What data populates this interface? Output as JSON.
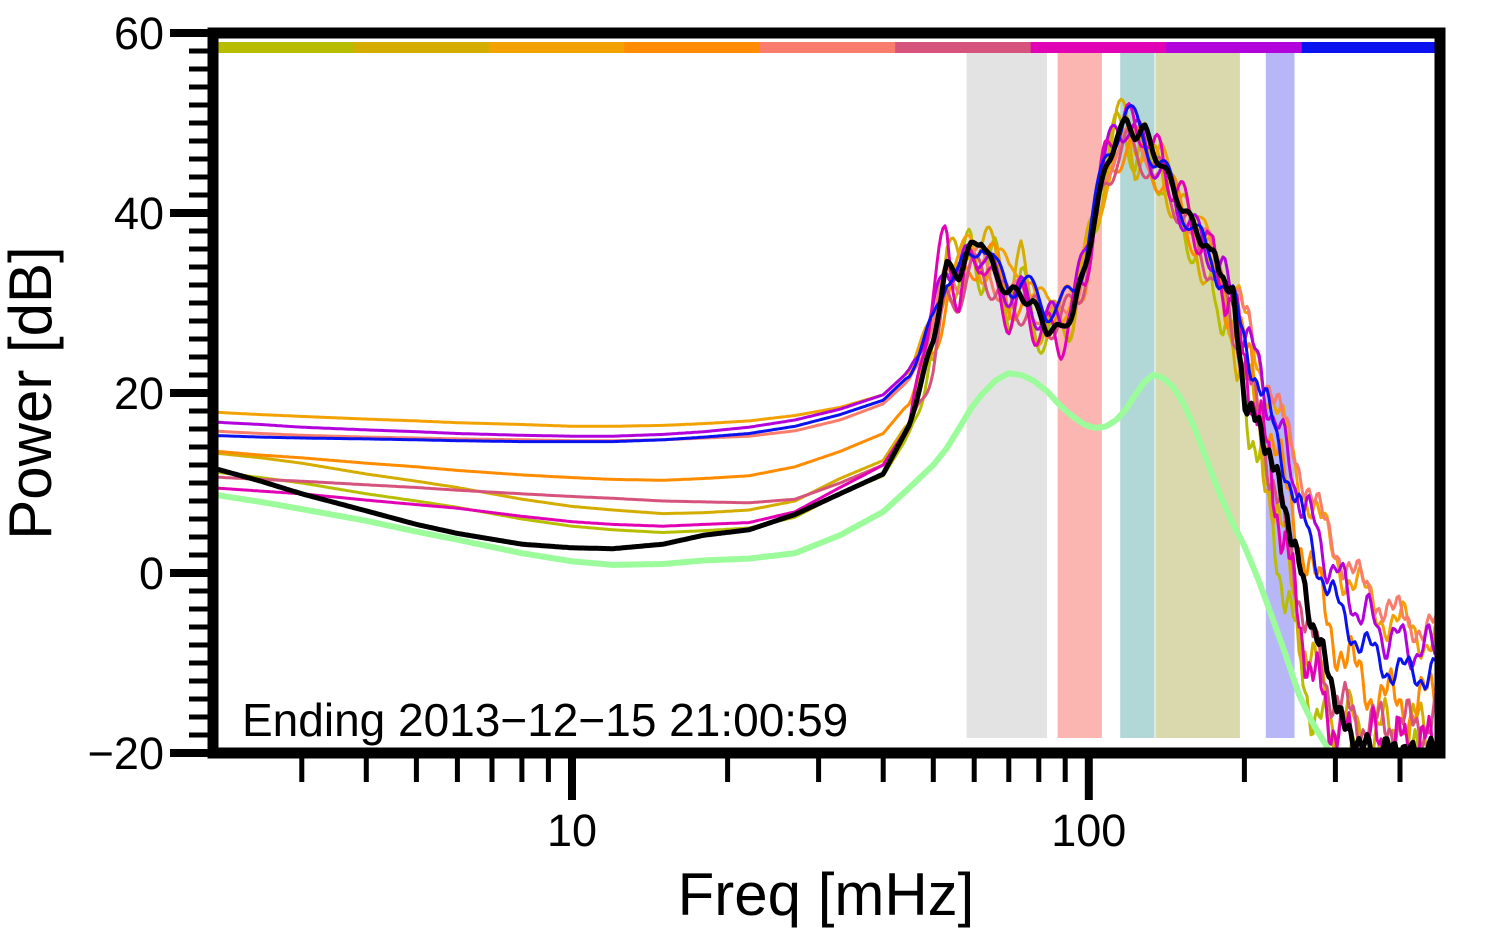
{
  "chart_data": {
    "type": "line",
    "title": "",
    "xlabel": "Freq [mHz]",
    "ylabel": "Power [dB]",
    "annotation": "Ending 2013−12−15 21:00:59",
    "x_scale": "log",
    "xlim": [
      2.02,
      478
    ],
    "ylim": [
      -20,
      60
    ],
    "grid": false,
    "legend_position": "none",
    "background_color": "#ffffff",
    "frame_color": "#000000",
    "x_major_ticks": [
      {
        "f": 10,
        "label": "10"
      },
      {
        "f": 100,
        "label": "100"
      }
    ],
    "x_minor_ticks": [
      3,
      4,
      5,
      6,
      7,
      8,
      9,
      20,
      30,
      40,
      50,
      60,
      70,
      80,
      90,
      200,
      300,
      400
    ],
    "y_major_ticks": [
      {
        "v": -20,
        "label": "−20"
      },
      {
        "v": 0,
        "label": "0"
      },
      {
        "v": 20,
        "label": "20"
      },
      {
        "v": 40,
        "label": "40"
      },
      {
        "v": 60,
        "label": "60"
      }
    ],
    "y_minor_step": 2,
    "shaded_bands": [
      {
        "name": "gray-band",
        "color": "#e3e3e3",
        "f_range_mhz": [
          58,
          83
        ]
      },
      {
        "name": "pink-band",
        "color": "#fcb6b2",
        "f_range_mhz": [
          87,
          106
        ]
      },
      {
        "name": "teal-band",
        "color": "#b2d7d7",
        "f_range_mhz": [
          115,
          134
        ]
      },
      {
        "name": "khaki-band",
        "color": "#d9d9ad",
        "f_range_mhz": [
          134.5,
          196
        ]
      },
      {
        "name": "lavender-band",
        "color": "#b7b7f8",
        "f_range_mhz": [
          220,
          250
        ]
      }
    ],
    "epoch_colorbar_segments": [
      "#b7bd00",
      "#d4ad00",
      "#f2a202",
      "#ff8c00",
      "#fa7c6c",
      "#d6537d",
      "#e202b6",
      "#b303dc",
      "#0b12f0"
    ],
    "freqs_mhz": [
      1.98,
      2.5,
      3,
      4,
      5,
      6,
      8,
      10,
      12,
      15,
      18,
      22,
      27,
      33,
      40,
      45,
      50,
      53,
      56,
      59,
      62,
      66,
      70,
      74,
      78,
      83,
      88,
      93,
      98,
      103,
      108,
      113,
      118,
      123,
      128,
      133,
      138,
      145,
      152,
      160,
      170,
      180,
      190,
      200,
      212,
      225,
      240,
      255,
      270,
      290,
      310,
      335,
      360,
      390,
      420,
      450,
      478
    ],
    "series": [
      {
        "name": "epoch-1-olive",
        "color": "#b7bd00",
        "width": 3,
        "wiggle": {
          "amp": 2.8,
          "period": 30,
          "phase": 0.5
        },
        "wiggle2": {
          "amp": 1.2,
          "period": 9,
          "phase": 0.0
        },
        "db": [
          11.3,
          10.6,
          10.0,
          8.8,
          8.0,
          7.3,
          6.0,
          5.2,
          4.8,
          4.5,
          4.7,
          5.0,
          6.2,
          8.8,
          10.8,
          15.5,
          24.0,
          34.0,
          31.0,
          37.0,
          33.5,
          34.5,
          29.5,
          32.0,
          28.0,
          26.5,
          27.0,
          29.0,
          33.0,
          39.5,
          45.5,
          48.5,
          50.0,
          46.0,
          47.5,
          44.0,
          45.0,
          41.5,
          39.0,
          36.5,
          33.5,
          30.0,
          25.5,
          20.0,
          13.5,
          6.5,
          -2.0,
          -9.5,
          -14.5,
          -18.5,
          -21.5,
          -22.0,
          -21.0,
          -22.0,
          -21.5,
          -21.0,
          -21.5
        ]
      },
      {
        "name": "epoch-2-gold",
        "color": "#d4ad00",
        "width": 3,
        "wiggle": {
          "amp": 3.0,
          "period": 33,
          "phase": 2.0
        },
        "wiggle2": {
          "amp": 1.2,
          "period": 9,
          "phase": 2.0
        },
        "db": [
          13.4,
          12.8,
          12.2,
          11.0,
          10.2,
          9.5,
          8.2,
          7.4,
          7.0,
          6.6,
          6.7,
          7.0,
          8.0,
          10.5,
          12.5,
          17.0,
          25.0,
          36.0,
          33.0,
          38.5,
          35.0,
          36.0,
          30.0,
          34.0,
          29.0,
          27.0,
          27.5,
          29.5,
          33.5,
          40.0,
          46.0,
          49.0,
          50.5,
          46.5,
          48.0,
          44.5,
          45.5,
          42.0,
          39.5,
          37.0,
          34.0,
          31.0,
          27.0,
          22.0,
          16.0,
          9.5,
          2.0,
          -5.0,
          -10.5,
          -14.5,
          -16.5,
          -18.0,
          -18.5,
          -17.5,
          -18.0,
          -17.5,
          -17.0
        ]
      },
      {
        "name": "epoch-4-orange",
        "color": "#ff8c00",
        "width": 3,
        "wiggle": {
          "amp": 2.4,
          "period": 36,
          "phase": 4.0
        },
        "wiggle2": {
          "amp": 1.3,
          "period": 10,
          "phase": 1.0
        },
        "db": [
          13.6,
          13.1,
          12.8,
          12.2,
          11.8,
          11.4,
          10.9,
          10.6,
          10.4,
          10.3,
          10.5,
          10.8,
          11.8,
          13.5,
          15.5,
          19.0,
          25.0,
          31.0,
          32.0,
          34.5,
          35.5,
          34.0,
          31.0,
          29.5,
          30.0,
          28.5,
          29.0,
          30.0,
          33.0,
          38.5,
          43.5,
          46.5,
          48.0,
          47.5,
          46.0,
          45.5,
          44.0,
          42.0,
          40.0,
          37.5,
          35.0,
          32.0,
          28.5,
          24.5,
          20.0,
          15.0,
          9.5,
          4.5,
          0.0,
          -5.0,
          -9.0,
          -12.0,
          -13.5,
          -14.5,
          -14.8,
          -14.2,
          -13.8
        ]
      },
      {
        "name": "epoch-3-amber",
        "color": "#f2a202",
        "width": 3,
        "wiggle": {
          "amp": 2.0,
          "period": 40,
          "phase": 1.0
        },
        "wiggle2": {
          "amp": 0.9,
          "period": 11,
          "phase": 4.0
        },
        "db": [
          17.9,
          17.6,
          17.4,
          17.1,
          16.9,
          16.7,
          16.5,
          16.3,
          16.3,
          16.4,
          16.6,
          16.9,
          17.5,
          18.4,
          19.8,
          22.5,
          28.0,
          33.0,
          34.0,
          36.5,
          34.0,
          35.0,
          33.0,
          34.5,
          31.0,
          29.0,
          29.5,
          31.0,
          34.0,
          39.0,
          44.0,
          47.0,
          49.0,
          47.0,
          48.0,
          45.5,
          46.0,
          43.0,
          41.0,
          39.0,
          36.5,
          34.0,
          31.5,
          28.0,
          24.0,
          19.5,
          15.0,
          11.0,
          7.5,
          3.5,
          0.5,
          -2.0,
          -4.0,
          -5.5,
          -6.5,
          -7.0,
          -6.8
        ]
      },
      {
        "name": "epoch-5-salmon",
        "color": "#fa7c6c",
        "width": 3,
        "wiggle": {
          "amp": 1.5,
          "period": 38,
          "phase": 3.0
        },
        "wiggle2": {
          "amp": 0.8,
          "period": 10,
          "phase": 2.5
        },
        "db": [
          15.8,
          15.5,
          15.3,
          15.1,
          15.0,
          14.9,
          14.8,
          14.7,
          14.7,
          14.8,
          15.0,
          15.2,
          15.8,
          17.0,
          18.8,
          21.5,
          27.5,
          33.5,
          32.5,
          34.5,
          35.0,
          32.0,
          31.0,
          31.0,
          29.5,
          28.5,
          28.5,
          30.0,
          33.5,
          39.5,
          44.5,
          47.5,
          48.5,
          47.5,
          47.0,
          45.5,
          44.5,
          42.5,
          40.5,
          38.5,
          36.5,
          34.5,
          32.0,
          28.5,
          24.5,
          20.5,
          16.0,
          12.0,
          8.5,
          4.5,
          1.5,
          -1.0,
          -3.0,
          -4.5,
          -5.5,
          -6.2,
          -6.0
        ]
      },
      {
        "name": "epoch-6-rose",
        "color": "#d6537d",
        "width": 3,
        "wiggle": {
          "amp": 2.0,
          "period": 31,
          "phase": 5.2
        },
        "wiggle2": {
          "amp": 1.1,
          "period": 9,
          "phase": 5.0
        },
        "db": [
          10.7,
          10.4,
          10.2,
          9.8,
          9.5,
          9.2,
          8.8,
          8.5,
          8.3,
          8.0,
          7.9,
          7.8,
          8.2,
          10.0,
          12.0,
          16.0,
          23.0,
          30.0,
          31.0,
          33.0,
          34.0,
          31.5,
          30.0,
          29.5,
          29.0,
          28.0,
          28.0,
          29.5,
          33.0,
          38.5,
          43.5,
          46.5,
          47.5,
          46.5,
          46.0,
          45.0,
          44.0,
          42.0,
          39.5,
          37.0,
          34.5,
          31.5,
          27.5,
          23.0,
          17.5,
          11.5,
          4.5,
          -2.0,
          -7.5,
          -12.5,
          -15.0,
          -16.5,
          -17.0,
          -16.5,
          -17.0,
          -16.5,
          -15.8
        ]
      },
      {
        "name": "epoch-8-purple",
        "color": "#b303dc",
        "width": 3,
        "wiggle": {
          "amp": 2.0,
          "period": 29,
          "phase": 0.0
        },
        "wiggle2": {
          "amp": 0.9,
          "period": 12,
          "phase": 1.5
        },
        "db": [
          16.8,
          16.5,
          16.2,
          15.9,
          15.7,
          15.5,
          15.3,
          15.2,
          15.2,
          15.4,
          15.7,
          16.2,
          17.0,
          18.2,
          19.8,
          22.5,
          28.5,
          35.0,
          33.0,
          35.5,
          36.0,
          32.5,
          31.5,
          31.0,
          29.5,
          28.0,
          28.5,
          30.5,
          34.5,
          41.0,
          46.0,
          49.5,
          50.0,
          48.5,
          48.0,
          46.0,
          44.5,
          42.0,
          40.0,
          38.0,
          36.0,
          33.5,
          30.5,
          27.0,
          23.0,
          18.5,
          13.5,
          9.0,
          5.5,
          1.5,
          -1.5,
          -4.0,
          -6.0,
          -7.5,
          -8.2,
          -8.6,
          -8.3
        ]
      },
      {
        "name": "epoch-7-magenta",
        "color": "#e202b6",
        "width": 3,
        "wiggle": {
          "amp": 2.5,
          "period": 27,
          "phase": 2.6
        },
        "wiggle2": {
          "amp": 1.4,
          "period": 8,
          "phase": 3.5
        },
        "db": [
          9.5,
          9.1,
          8.8,
          8.1,
          7.6,
          7.2,
          6.3,
          5.7,
          5.4,
          5.2,
          5.4,
          5.6,
          6.8,
          9.5,
          12.0,
          16.5,
          31.0,
          38.0,
          30.0,
          34.0,
          36.0,
          30.5,
          29.0,
          30.0,
          28.0,
          26.5,
          26.0,
          28.5,
          33.0,
          40.0,
          46.5,
          50.5,
          50.0,
          49.0,
          50.0,
          46.0,
          46.5,
          43.5,
          41.0,
          38.5,
          36.0,
          33.0,
          29.5,
          23.5,
          18.0,
          11.0,
          3.0,
          -5.0,
          -11.0,
          -15.5,
          -18.0,
          -19.5,
          -18.5,
          -19.5,
          -18.5,
          -19.5,
          -18.5
        ]
      },
      {
        "name": "epoch-9-blue",
        "color": "#0b12f0",
        "width": 3,
        "wiggle": {
          "amp": 1.6,
          "period": 34,
          "phase": 5.8
        },
        "wiggle2": {
          "amp": 0.7,
          "period": 11,
          "phase": 0.5
        },
        "db": [
          15.3,
          15.1,
          15.0,
          14.9,
          14.8,
          14.7,
          14.6,
          14.6,
          14.6,
          14.8,
          15.1,
          15.5,
          16.3,
          17.6,
          19.2,
          22.0,
          28.0,
          33.5,
          33.0,
          35.0,
          37.5,
          33.5,
          32.0,
          32.5,
          31.0,
          29.5,
          29.5,
          31.0,
          35.0,
          41.0,
          46.0,
          49.0,
          51.0,
          50.0,
          48.5,
          46.5,
          45.0,
          43.0,
          40.5,
          38.0,
          35.5,
          33.0,
          30.0,
          26.0,
          21.5,
          17.0,
          12.0,
          7.0,
          3.0,
          -1.5,
          -5.0,
          -7.5,
          -9.5,
          -10.8,
          -11.2,
          -11.0,
          -10.5
        ]
      },
      {
        "name": "pale-green-reference",
        "color": "#9cfc9c",
        "width": 6,
        "wiggle": null,
        "wiggle2": null,
        "db": [
          8.8,
          7.9,
          7.1,
          5.8,
          4.6,
          3.7,
          2.2,
          1.3,
          0.9,
          1.0,
          1.4,
          1.6,
          2.2,
          4.2,
          6.8,
          9.5,
          12.0,
          13.8,
          16.0,
          18.2,
          19.8,
          21.4,
          22.2,
          22.0,
          21.4,
          20.2,
          18.6,
          17.4,
          16.5,
          16.1,
          16.3,
          17.0,
          18.2,
          19.8,
          21.2,
          22.0,
          21.8,
          20.8,
          19.0,
          16.2,
          12.2,
          8.5,
          5.5,
          3.0,
          -0.5,
          -4.5,
          -9.0,
          -13.5,
          -16.5,
          -19.5,
          -23.0,
          -26.0,
          -26.0,
          -26.0,
          -26.0,
          -26.0,
          -26.0
        ]
      },
      {
        "name": "black-mean-spectrum",
        "color": "#000000",
        "width": 5,
        "wiggle": {
          "amp": 0.7,
          "period": 22,
          "phase": 1.0
        },
        "wiggle2": {
          "amp": 0.8,
          "period": 9,
          "phase": 1.8
        },
        "db": [
          11.8,
          10.2,
          8.8,
          6.9,
          5.4,
          4.4,
          3.2,
          2.8,
          2.7,
          3.2,
          4.2,
          4.8,
          6.5,
          8.8,
          11.0,
          16.5,
          26.0,
          34.0,
          33.2,
          36.0,
          37.3,
          33.0,
          31.2,
          31.0,
          29.8,
          27.2,
          26.9,
          29.0,
          33.5,
          40.0,
          45.0,
          48.5,
          50.0,
          48.8,
          49.3,
          47.0,
          45.5,
          43.0,
          40.5,
          38.5,
          36.0,
          33.8,
          30.5,
          19.5,
          16.5,
          13.0,
          7.0,
          1.0,
          -5.5,
          -10.5,
          -17.0,
          -19.0,
          -19.8,
          -19.4,
          -20.1,
          -19.6,
          -20.2
        ]
      }
    ]
  }
}
